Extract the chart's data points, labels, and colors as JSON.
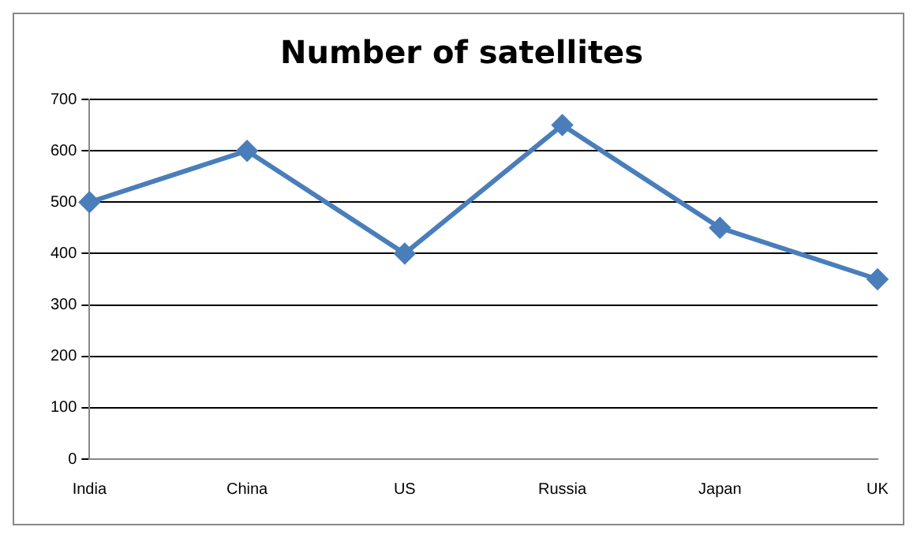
{
  "chart_data": {
    "type": "line",
    "title": "Number of satellites",
    "categories": [
      "India",
      "China",
      "US",
      "Russia",
      "Japan",
      "UK"
    ],
    "series": [
      {
        "color": "#4a7ebb",
        "values": [
          500,
          600,
          400,
          650,
          450,
          350
        ]
      }
    ],
    "ylim": [
      0,
      700
    ],
    "yticks": [
      0,
      100,
      200,
      300,
      400,
      500,
      600,
      700
    ],
    "grid": "y",
    "legend": false,
    "marker": "diamond",
    "line_style": "solid"
  }
}
